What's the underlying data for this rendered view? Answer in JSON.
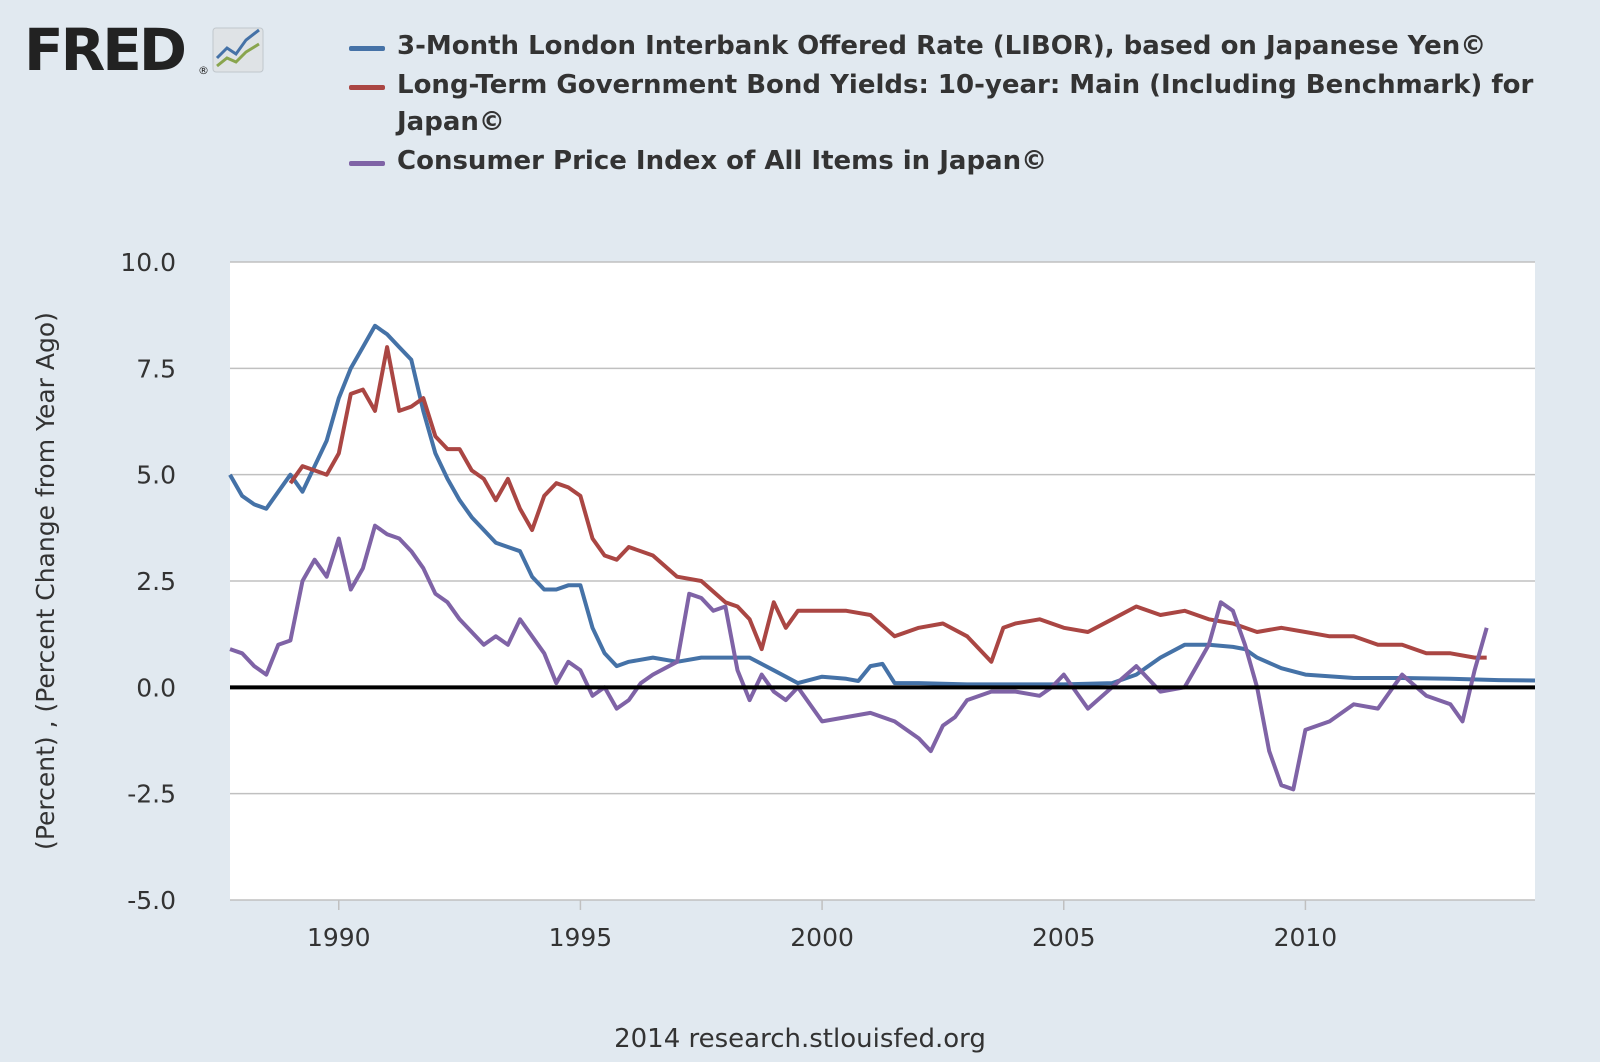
{
  "logo": {
    "text": "FRED",
    "registered": "®"
  },
  "source": "2014 research.stlouisfed.org",
  "colors": {
    "libor": "#4572a7",
    "bond": "#aa4643",
    "cpi": "#89a54e",
    "cpi_line": "#7f63a6",
    "zero_line": "#000000"
  },
  "chart_data": {
    "type": "line",
    "title": "",
    "xlabel": "",
    "ylabel": "(Percent) , (Percent Change from Year Ago)",
    "xlim": [
      1987.75,
      2014.75
    ],
    "ylim": [
      -5.0,
      10.0
    ],
    "x_ticks": [
      1990,
      1995,
      2000,
      2005,
      2010
    ],
    "x_tick_labels": [
      "1990",
      "1995",
      "2000",
      "2005",
      "2010"
    ],
    "y_ticks": [
      -5.0,
      -2.5,
      0.0,
      2.5,
      5.0,
      7.5,
      10.0
    ],
    "y_tick_labels": [
      "-5.0",
      "-2.5",
      "0.0",
      "2.5",
      "5.0",
      "7.5",
      "10.0"
    ],
    "grid": true,
    "reference_line": 0.0,
    "series": [
      {
        "name": "3-Month London Interbank Offered Rate (LIBOR), based on Japanese Yen©",
        "color": "#4572a7",
        "x": [
          1987.75,
          1988.0,
          1988.25,
          1988.5,
          1988.75,
          1989.0,
          1989.25,
          1989.5,
          1989.75,
          1990.0,
          1990.25,
          1990.5,
          1990.75,
          1991.0,
          1991.25,
          1991.5,
          1991.75,
          1992.0,
          1992.25,
          1992.5,
          1992.75,
          1993.0,
          1993.25,
          1993.5,
          1993.75,
          1994.0,
          1994.25,
          1994.5,
          1994.75,
          1995.0,
          1995.25,
          1995.5,
          1995.75,
          1996.0,
          1996.5,
          1997.0,
          1997.5,
          1998.0,
          1998.5,
          1999.0,
          1999.5,
          2000.0,
          2000.5,
          2000.75,
          2001.0,
          2001.25,
          2001.5,
          2002.0,
          2003.0,
          2004.0,
          2005.0,
          2006.0,
          2006.5,
          2006.75,
          2007.0,
          2007.5,
          2008.0,
          2008.5,
          2008.75,
          2009.0,
          2009.5,
          2010.0,
          2011.0,
          2012.0,
          2013.0,
          2014.0,
          2014.75
        ],
        "values": [
          5.0,
          4.5,
          4.3,
          4.2,
          4.6,
          5.0,
          4.6,
          5.2,
          5.8,
          6.8,
          7.5,
          8.0,
          8.5,
          8.3,
          8.0,
          7.7,
          6.5,
          5.5,
          4.9,
          4.4,
          4.0,
          3.7,
          3.4,
          3.3,
          3.2,
          2.6,
          2.3,
          2.3,
          2.4,
          2.4,
          1.4,
          0.8,
          0.5,
          0.6,
          0.7,
          0.6,
          0.7,
          0.7,
          0.7,
          0.4,
          0.1,
          0.25,
          0.2,
          0.15,
          0.5,
          0.55,
          0.1,
          0.1,
          0.07,
          0.07,
          0.07,
          0.1,
          0.3,
          0.5,
          0.7,
          1.0,
          1.0,
          0.95,
          0.9,
          0.7,
          0.45,
          0.3,
          0.22,
          0.22,
          0.2,
          0.17,
          0.16
        ]
      },
      {
        "name": "Long-Term Government Bond Yields: 10-year: Main (Including Benchmark) for Japan©",
        "color": "#aa4643",
        "x": [
          1989.0,
          1989.25,
          1989.5,
          1989.75,
          1990.0,
          1990.25,
          1990.5,
          1990.75,
          1991.0,
          1991.25,
          1991.5,
          1991.75,
          1992.0,
          1992.25,
          1992.5,
          1992.75,
          1993.0,
          1993.25,
          1993.5,
          1993.75,
          1994.0,
          1994.25,
          1994.5,
          1994.75,
          1995.0,
          1995.25,
          1995.5,
          1995.75,
          1996.0,
          1996.5,
          1997.0,
          1997.5,
          1998.0,
          1998.25,
          1998.5,
          1998.75,
          1999.0,
          1999.25,
          1999.5,
          2000.0,
          2000.5,
          2001.0,
          2001.5,
          2002.0,
          2002.5,
          2003.0,
          2003.5,
          2003.75,
          2004.0,
          2004.5,
          2005.0,
          2005.5,
          2006.0,
          2006.5,
          2007.0,
          2007.5,
          2008.0,
          2008.5,
          2009.0,
          2009.5,
          2010.0,
          2010.5,
          2011.0,
          2011.5,
          2012.0,
          2012.5,
          2013.0,
          2013.5,
          2013.75
        ],
        "values": [
          4.8,
          5.2,
          5.1,
          5.0,
          5.5,
          6.9,
          7.0,
          6.5,
          8.0,
          6.5,
          6.6,
          6.8,
          5.9,
          5.6,
          5.6,
          5.1,
          4.9,
          4.4,
          4.9,
          4.2,
          3.7,
          4.5,
          4.8,
          4.7,
          4.5,
          3.5,
          3.1,
          3.0,
          3.3,
          3.1,
          2.6,
          2.5,
          2.0,
          1.9,
          1.6,
          0.9,
          2.0,
          1.4,
          1.8,
          1.8,
          1.8,
          1.7,
          1.2,
          1.4,
          1.5,
          1.2,
          0.6,
          1.4,
          1.5,
          1.6,
          1.4,
          1.3,
          1.6,
          1.9,
          1.7,
          1.8,
          1.6,
          1.5,
          1.3,
          1.4,
          1.3,
          1.2,
          1.2,
          1.0,
          1.0,
          0.8,
          0.8,
          0.7,
          0.7
        ]
      },
      {
        "name": "Consumer Price Index of All Items in Japan©",
        "color": "#7f63a6",
        "x": [
          1987.75,
          1988.0,
          1988.25,
          1988.5,
          1988.75,
          1989.0,
          1989.25,
          1989.5,
          1989.75,
          1990.0,
          1990.25,
          1990.5,
          1990.75,
          1991.0,
          1991.25,
          1991.5,
          1991.75,
          1992.0,
          1992.25,
          1992.5,
          1992.75,
          1993.0,
          1993.25,
          1993.5,
          1993.75,
          1994.0,
          1994.25,
          1994.5,
          1994.75,
          1995.0,
          1995.25,
          1995.5,
          1995.75,
          1996.0,
          1996.25,
          1996.5,
          1997.0,
          1997.25,
          1997.5,
          1997.75,
          1998.0,
          1998.25,
          1998.5,
          1998.75,
          1999.0,
          1999.25,
          1999.5,
          2000.0,
          2000.5,
          2001.0,
          2001.5,
          2002.0,
          2002.25,
          2002.5,
          2002.75,
          2003.0,
          2003.5,
          2004.0,
          2004.5,
          2004.75,
          2005.0,
          2005.5,
          2006.0,
          2006.5,
          2007.0,
          2007.5,
          2007.75,
          2008.0,
          2008.25,
          2008.5,
          2008.75,
          2009.0,
          2009.25,
          2009.5,
          2009.75,
          2010.0,
          2010.5,
          2011.0,
          2011.5,
          2012.0,
          2012.5,
          2013.0,
          2013.25,
          2013.5,
          2013.75
        ],
        "values": [
          0.9,
          0.8,
          0.5,
          0.3,
          1.0,
          1.1,
          2.5,
          3.0,
          2.6,
          3.5,
          2.3,
          2.8,
          3.8,
          3.6,
          3.5,
          3.2,
          2.8,
          2.2,
          2.0,
          1.6,
          1.3,
          1.0,
          1.2,
          1.0,
          1.6,
          1.2,
          0.8,
          0.1,
          0.6,
          0.4,
          -0.2,
          0.0,
          -0.5,
          -0.3,
          0.1,
          0.3,
          0.6,
          2.2,
          2.1,
          1.8,
          1.9,
          0.4,
          -0.3,
          0.3,
          -0.1,
          -0.3,
          0.0,
          -0.8,
          -0.7,
          -0.6,
          -0.8,
          -1.2,
          -1.5,
          -0.9,
          -0.7,
          -0.3,
          -0.1,
          -0.1,
          -0.2,
          0.0,
          0.3,
          -0.5,
          0.0,
          0.5,
          -0.1,
          0.0,
          0.5,
          1.0,
          2.0,
          1.8,
          1.0,
          0.0,
          -1.5,
          -2.3,
          -2.4,
          -1.0,
          -0.8,
          -0.4,
          -0.5,
          0.3,
          -0.2,
          -0.4,
          -0.8,
          0.4,
          1.4
        ]
      }
    ]
  }
}
